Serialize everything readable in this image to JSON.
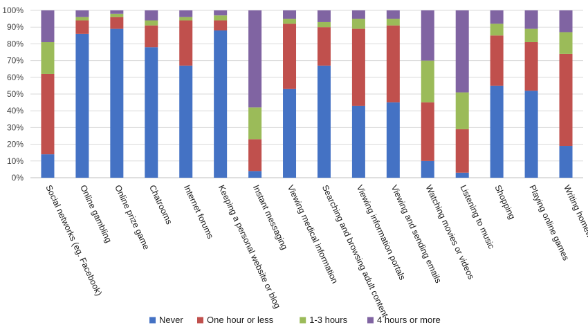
{
  "chart_data": {
    "type": "bar",
    "stacked": true,
    "percent": true,
    "title": "",
    "xlabel": "",
    "ylabel": "",
    "ylim": [
      0,
      100
    ],
    "yticks": [
      "0%",
      "10%",
      "20%",
      "30%",
      "40%",
      "50%",
      "60%",
      "70%",
      "80%",
      "90%",
      "100%"
    ],
    "grid": true,
    "legend_position": "bottom",
    "categories": [
      "Social networks (eg. Facebook)",
      "Online gambling",
      "Online prize game",
      "Chatrooms",
      "Internet forums",
      "Keeping a personal website or blog",
      "Instant messaging",
      "Viewing medical information",
      "Searching and browsing adult content",
      "Viewing information portals",
      "Viewing and sending emails",
      "Watching movies or videos",
      "Listening to music",
      "Shopping",
      "Playing online games",
      "Writing homework or research"
    ],
    "series": [
      {
        "name": "Never",
        "color": "#4472C4",
        "values": [
          14,
          86,
          89,
          78,
          67,
          88,
          4,
          53,
          67,
          43,
          45,
          10,
          3,
          55,
          52,
          19
        ]
      },
      {
        "name": "One hour or less",
        "color": "#C0504D",
        "values": [
          48,
          8,
          7,
          13,
          27,
          6,
          19,
          39,
          23,
          46,
          46,
          35,
          26,
          30,
          29,
          55
        ]
      },
      {
        "name": "1-3 hours",
        "color": "#9BBB59",
        "values": [
          19,
          2,
          2,
          3,
          2,
          3,
          19,
          3,
          3,
          6,
          4,
          25,
          22,
          7,
          8,
          13
        ]
      },
      {
        "name": "4 hours or more",
        "color": "#8064A2",
        "values": [
          19,
          4,
          2,
          6,
          4,
          3,
          58,
          5,
          7,
          5,
          5,
          30,
          49,
          8,
          11,
          13
        ]
      }
    ]
  }
}
